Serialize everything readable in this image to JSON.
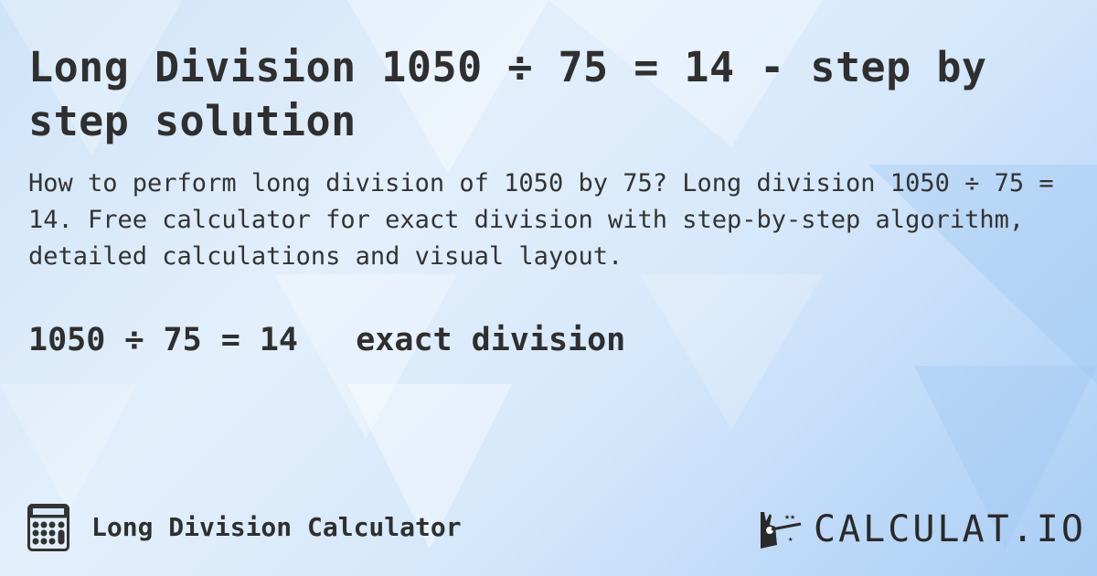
{
  "header": {
    "title": "Long Division 1050 ÷ 75 = 14 - step by step solution"
  },
  "description": "How to perform long division of 1050 by 75? Long division 1050 ÷ 75 = 14. Free calculator for exact division with step-by-step algorithm, detailed calculations and visual layout.",
  "result": {
    "equation": "1050 ÷ 75 = 14",
    "type": "exact division"
  },
  "footer": {
    "calculator_name": "Long Division Calculator",
    "icon": "calculator-icon",
    "logo_text": "CALCULAT.IO"
  },
  "colors": {
    "text": "#2f2f2f",
    "background": "#d6e8fb"
  }
}
